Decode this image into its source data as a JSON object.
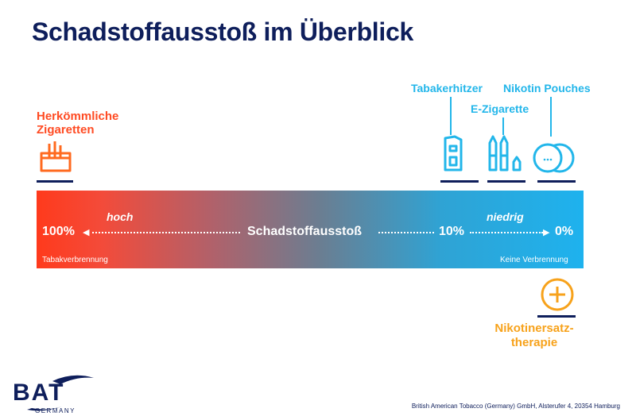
{
  "title": "Schadstoffausstoß im Überblick",
  "products": {
    "cigarettes": {
      "line1": "Herkömmliche",
      "line2": "Zigaretten"
    },
    "heater": {
      "label": "Tabakerhitzer"
    },
    "ecig": {
      "label": "E-Zigarette"
    },
    "pouches": {
      "label": "Nikotin Pouches"
    },
    "nrt": {
      "line1": "Nikotinersatz-",
      "line2": "therapie"
    }
  },
  "scale": {
    "center_label": "Schadstoffausstoß",
    "high_pct": "100%",
    "high_word": "hoch",
    "low_pct": "10%",
    "low_word": "niedrig",
    "zero_pct": "0%",
    "left_caption": "Tabakverbrennung",
    "right_caption": "Keine Verbrennung"
  },
  "colors": {
    "navy": "#0e1e5b",
    "orange": "#ff4b23",
    "cyan": "#22b6ea",
    "amber": "#f7a21b"
  },
  "logo": {
    "name": "BAT",
    "sub": "GERMANY"
  },
  "footer": "British American Tobacco (Germany) GmbH, Alsterufer 4, 20354 Hamburg"
}
